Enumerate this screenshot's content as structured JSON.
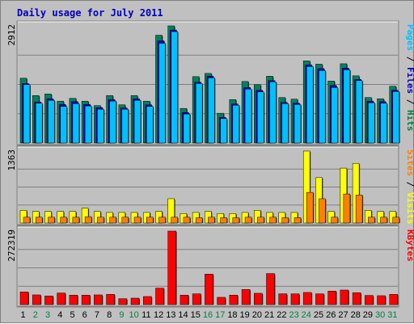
{
  "title": "Daily usage for July 2011",
  "chart_data": {
    "type": "bar",
    "title": "Daily usage for July 2011",
    "categories": [
      "1",
      "2",
      "3",
      "4",
      "5",
      "6",
      "7",
      "8",
      "9",
      "10",
      "11",
      "12",
      "13",
      "14",
      "15",
      "16",
      "17",
      "18",
      "19",
      "20",
      "21",
      "22",
      "23",
      "24",
      "25",
      "26",
      "27",
      "28",
      "29",
      "30",
      "31"
    ],
    "weekend_days": [
      2,
      3,
      9,
      10,
      16,
      17,
      23,
      24,
      30,
      31
    ],
    "panels": [
      {
        "max_label": "2912",
        "max": 2912,
        "side_labels": [
          {
            "text": "Pages",
            "color": "#00c0ff"
          },
          {
            "text": " / ",
            "color": "#000000"
          },
          {
            "text": "Files",
            "color": "#0000c0"
          },
          {
            "text": " / ",
            "color": "#000000"
          },
          {
            "text": "Hits",
            "color": "#008040"
          }
        ],
        "series": [
          {
            "name": "Hits",
            "color": "#008060",
            "values": [
              1610,
              1180,
              1220,
              1040,
              1110,
              1040,
              930,
              1180,
              950,
              1180,
              1040,
              2680,
              2912,
              860,
              1650,
              1730,
              740,
              1080,
              1530,
              1450,
              1660,
              1130,
              1090,
              2040,
              1960,
              1540,
              1970,
              1670,
              1130,
              1100,
              1410
            ]
          },
          {
            "name": "Files",
            "color": "#0000c0",
            "values": [
              1480,
              1020,
              1100,
              960,
              1030,
              960,
              880,
              1080,
              870,
              1100,
              950,
              2540,
              2810,
              760,
              1510,
              1660,
              640,
              970,
              1380,
              1310,
              1550,
              1010,
              990,
              1940,
              1850,
              1430,
              1860,
              1580,
              1040,
              1030,
              1310
            ]
          },
          {
            "name": "Pages",
            "color": "#00c0ff",
            "values": [
              1450,
              990,
              1060,
              910,
              980,
              920,
              840,
              1040,
              840,
              1060,
              910,
              2480,
              2770,
              720,
              1480,
              1620,
              610,
              940,
              1340,
              1270,
              1520,
              980,
              960,
              1900,
              1800,
              1380,
              1820,
              1550,
              1000,
              990,
              1280
            ]
          }
        ]
      },
      {
        "max_label": "1363",
        "max": 1363,
        "side_labels": [
          {
            "text": "Sites",
            "color": "#ff8000"
          },
          {
            "text": " / ",
            "color": "#000000"
          },
          {
            "text": "Visits",
            "color": "#ffff00"
          }
        ],
        "series": [
          {
            "name": "Visits",
            "color": "#ffff00",
            "values": [
              240,
              220,
              220,
              220,
              220,
              280,
              220,
              200,
              200,
              200,
              200,
              220,
              460,
              180,
              200,
              220,
              180,
              180,
              200,
              240,
              200,
              200,
              200,
              1363,
              860,
              220,
              1040,
              1130,
              240,
              220,
              220
            ]
          },
          {
            "name": "Sites",
            "color": "#ff8000",
            "values": [
              110,
              110,
              110,
              110,
              110,
              120,
              110,
              110,
              110,
              110,
              110,
              110,
              110,
              110,
              100,
              110,
              100,
              100,
              110,
              110,
              110,
              100,
              100,
              580,
              460,
              110,
              550,
              530,
              110,
              110,
              110
            ]
          }
        ]
      },
      {
        "max_label": "272319",
        "max": 272319,
        "side_labels": [
          {
            "text": "KBytes",
            "color": "#ff0000"
          }
        ],
        "series": [
          {
            "name": "KBytes",
            "color": "#ff0000",
            "values": [
              47000,
              36000,
              32000,
              43000,
              35000,
              35000,
              36000,
              38000,
              22000,
              24000,
              30000,
              61000,
              272319,
              35000,
              40000,
              113000,
              27000,
              35000,
              56000,
              42000,
              115000,
              40000,
              40000,
              45000,
              40000,
              50000,
              54000,
              44000,
              34000,
              33000,
              38000
            ]
          }
        ]
      }
    ]
  }
}
